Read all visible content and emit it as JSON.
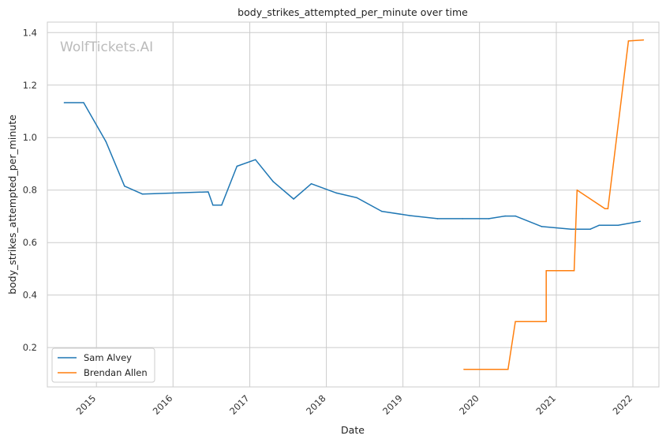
{
  "chart_data": {
    "type": "line",
    "title": "body_strikes_attempted_per_minute over time",
    "xlabel": "Date",
    "ylabel": "body_strikes_attempted_per_minute",
    "watermark": "WolfTickets.AI",
    "x_ticks": [
      "2015",
      "2016",
      "2017",
      "2018",
      "2019",
      "2020",
      "2021",
      "2022"
    ],
    "y_ticks": [
      "0.2",
      "0.4",
      "0.6",
      "0.8",
      "1.0",
      "1.2",
      "1.4"
    ],
    "xlim": [
      "2014-05-12",
      "2022-05-05"
    ],
    "ylim": [
      0.05,
      1.44
    ],
    "grid": true,
    "legend_position": "lower-left",
    "series": [
      {
        "name": "Sam Alvey",
        "color": "#1f77b4",
        "x": [
          "2014-08-01",
          "2014-11-01",
          "2015-02-15",
          "2015-05-15",
          "2015-08-08",
          "2016-06-17",
          "2016-07-09",
          "2016-08-20",
          "2016-11-01",
          "2017-01-28",
          "2017-04-23",
          "2017-07-29",
          "2017-10-21",
          "2018-02-18",
          "2018-05-26",
          "2018-09-22",
          "2019-02-02",
          "2019-06-15",
          "2019-10-12",
          "2020-02-15",
          "2020-05-02",
          "2020-06-20",
          "2020-10-24",
          "2021-03-13",
          "2021-06-12",
          "2021-07-24",
          "2021-10-23",
          "2022-02-05"
        ],
        "y": [
          1.133,
          1.133,
          0.985,
          0.815,
          0.785,
          0.793,
          0.743,
          0.743,
          0.891,
          0.916,
          0.832,
          0.766,
          0.824,
          0.789,
          0.771,
          0.719,
          0.703,
          0.691,
          0.691,
          0.691,
          0.701,
          0.701,
          0.661,
          0.651,
          0.651,
          0.666,
          0.666,
          0.681
        ]
      },
      {
        "name": "Brendan Allen",
        "color": "#ff7f0e",
        "x": [
          "2019-10-19",
          "2020-05-16",
          "2020-06-20",
          "2020-11-14",
          "2020-11-14",
          "2021-03-27",
          "2021-04-10",
          "2021-08-21",
          "2021-09-04",
          "2021-12-11",
          "2022-02-20"
        ],
        "y": [
          0.117,
          0.117,
          0.299,
          0.299,
          0.493,
          0.493,
          0.8,
          0.729,
          0.729,
          1.368,
          1.372
        ]
      }
    ]
  }
}
